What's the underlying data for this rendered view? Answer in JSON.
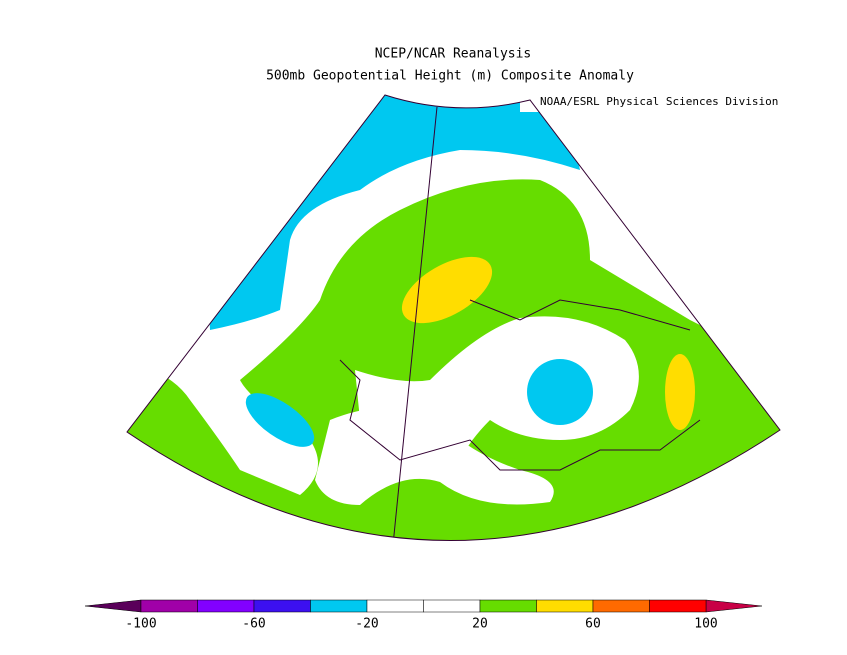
{
  "title": "NCEP/NCAR Reanalysis",
  "subtitle": "500mb Geopotential Height (m) Composite Anomaly",
  "credit": "NOAA/ESRL Physical Sciences Division",
  "colorbar": {
    "bounds": [
      -100,
      -80,
      -60,
      -40,
      -20,
      0,
      20,
      40,
      60,
      80,
      100
    ],
    "colors": [
      "#a000a8",
      "#8200ff",
      "#3c10f0",
      "#00c8f0",
      "#ffffff",
      "#ffffff",
      "#66dd00",
      "#ffdd00",
      "#ff6a00",
      "#ff0000"
    ],
    "under_color": "#5a005a",
    "over_color": "#c80046",
    "ticks": [
      -100,
      -60,
      -20,
      20,
      60,
      100
    ]
  }
}
